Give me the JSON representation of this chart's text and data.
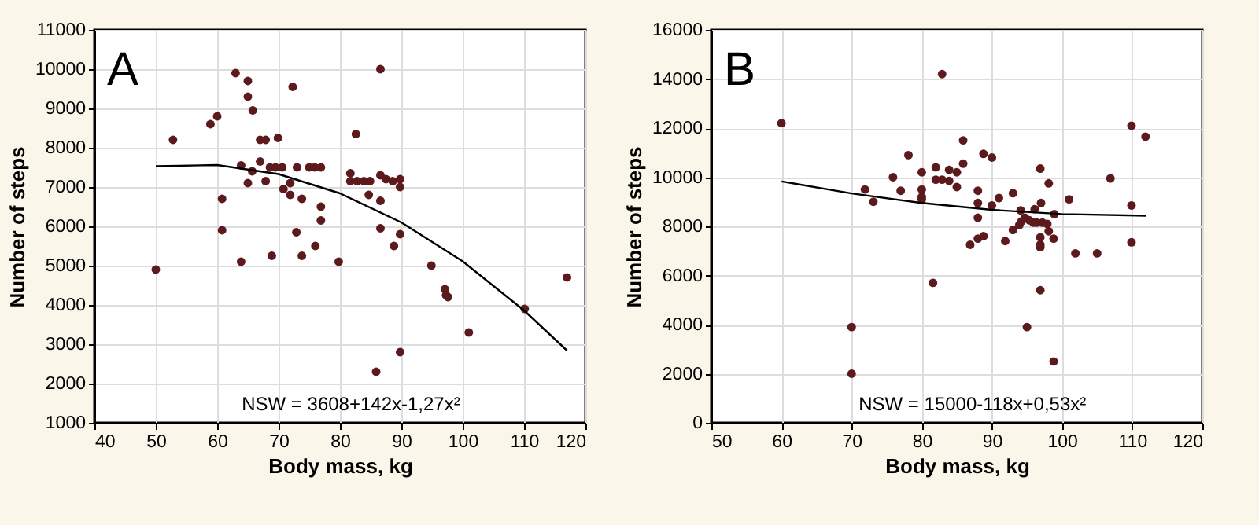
{
  "chart_data": [
    {
      "type": "scatter",
      "xlabel": "Body mass, kg",
      "ylabel": "Number of steps",
      "xlim": [
        40,
        120
      ],
      "xticks": [
        40,
        50,
        60,
        70,
        80,
        90,
        100,
        110,
        120
      ],
      "ylim": [
        1000,
        11000
      ],
      "yticks": [
        1000,
        2000,
        3000,
        4000,
        5000,
        6000,
        7000,
        8000,
        9000,
        10000,
        11000
      ],
      "grid": true,
      "annotations": [
        "A",
        "NSW = 3608+142x-1,27x²"
      ],
      "series": [
        {
          "marker": "circle",
          "color": "#5c1a1c",
          "x": [
            50,
            52.8,
            58.9,
            60,
            63,
            65,
            65,
            65.8,
            67,
            67.9,
            69.9,
            63.9,
            67,
            65.7,
            65,
            67.9,
            68.6,
            69.5,
            70.6,
            73,
            75,
            75.9,
            76.9,
            72.3,
            70.8,
            71.9,
            71.9,
            73.8,
            76.9,
            76.9,
            60.8,
            60.8,
            72.9,
            63.9,
            68.9,
            73.8,
            76,
            86.6,
            82.6,
            79.8,
            81.7,
            81.7,
            82.8,
            83.9,
            84.9,
            84.7,
            86.6,
            87.5,
            88.6,
            89.8,
            89.8,
            86.6,
            86.6,
            88.8,
            89.8,
            89.8,
            85.9,
            94.9,
            97.1,
            97.3,
            97.6,
            101,
            110.1,
            117
          ],
          "values": [
            4900,
            8200,
            8600,
            8800,
            9900,
            9700,
            9300,
            8950,
            8200,
            8200,
            8250,
            7550,
            7650,
            7400,
            7100,
            7150,
            7500,
            7500,
            7500,
            7500,
            7500,
            7500,
            7500,
            9550,
            6950,
            7100,
            6800,
            6700,
            6500,
            6150,
            6700,
            5900,
            5850,
            5100,
            5250,
            5250,
            5500,
            10000,
            8350,
            5100,
            7350,
            7150,
            7150,
            7150,
            7150,
            6800,
            7300,
            7200,
            7150,
            7200,
            7000,
            6650,
            5950,
            5500,
            5800,
            2800,
            2300,
            5000,
            4400,
            4250,
            4200,
            3300,
            3900,
            4700
          ]
        },
        {
          "type": "line",
          "color": "#000000",
          "x": [
            50,
            60,
            70,
            80,
            90,
            100,
            110,
            117
          ],
          "values": [
            7530,
            7560,
            7330,
            6840,
            6100,
            5110,
            3860,
            2840
          ]
        }
      ]
    },
    {
      "type": "scatter",
      "xlabel": "Body mass, kg",
      "ylabel": "Number of steps",
      "xlim": [
        50,
        120
      ],
      "xticks": [
        50,
        60,
        70,
        80,
        90,
        100,
        110,
        120
      ],
      "ylim": [
        0,
        16000
      ],
      "yticks": [
        0,
        2000,
        4000,
        6000,
        8000,
        10000,
        12000,
        14000,
        16000
      ],
      "grid": true,
      "annotations": [
        "B",
        "NSW = 15000-118x+0,53x²"
      ],
      "series": [
        {
          "marker": "circle",
          "color": "#5c1a1c",
          "x": [
            60,
            70,
            70,
            71.9,
            73.1,
            75.9,
            77,
            78.1,
            80,
            80,
            80,
            80,
            81.6,
            82.9,
            85.9,
            82,
            82.9,
            83.9,
            85,
            82,
            83.9,
            85.9,
            85,
            88.8,
            90,
            88,
            88,
            88,
            90,
            91,
            93,
            86.9,
            88,
            88.8,
            91.9,
            93,
            93.9,
            94.2,
            94.7,
            95.3,
            95.9,
            96.4,
            97.2,
            97.9,
            94.1,
            96.1,
            97,
            98.9,
            96.9,
            98.1,
            96.9,
            96.9,
            96.9,
            98.1,
            98.8,
            96.9,
            95,
            98.8,
            101,
            101.9,
            105,
            106.9,
            109.9,
            111.9,
            109.9,
            109.9
          ],
          "values": [
            12200,
            3900,
            2000,
            9500,
            9000,
            10000,
            9450,
            10900,
            10200,
            9500,
            9200,
            9100,
            5700,
            14200,
            11500,
            10400,
            9900,
            9850,
            10200,
            9900,
            10300,
            10550,
            9600,
            10950,
            10800,
            9450,
            8950,
            8350,
            8850,
            9150,
            9350,
            7250,
            7500,
            7600,
            7400,
            7850,
            8050,
            8200,
            8350,
            8250,
            8150,
            8150,
            8150,
            8100,
            8650,
            8700,
            8950,
            8500,
            10350,
            9750,
            7550,
            7250,
            7150,
            7800,
            7500,
            5400,
            3900,
            2500,
            9100,
            6900,
            6900,
            9950,
            12100,
            11650,
            8850,
            7350
          ]
        },
        {
          "type": "line",
          "color": "#000000",
          "x": [
            60,
            70,
            80,
            90,
            100,
            112
          ],
          "values": [
            9830,
            9340,
            8950,
            8670,
            8500,
            8430
          ]
        }
      ]
    }
  ]
}
